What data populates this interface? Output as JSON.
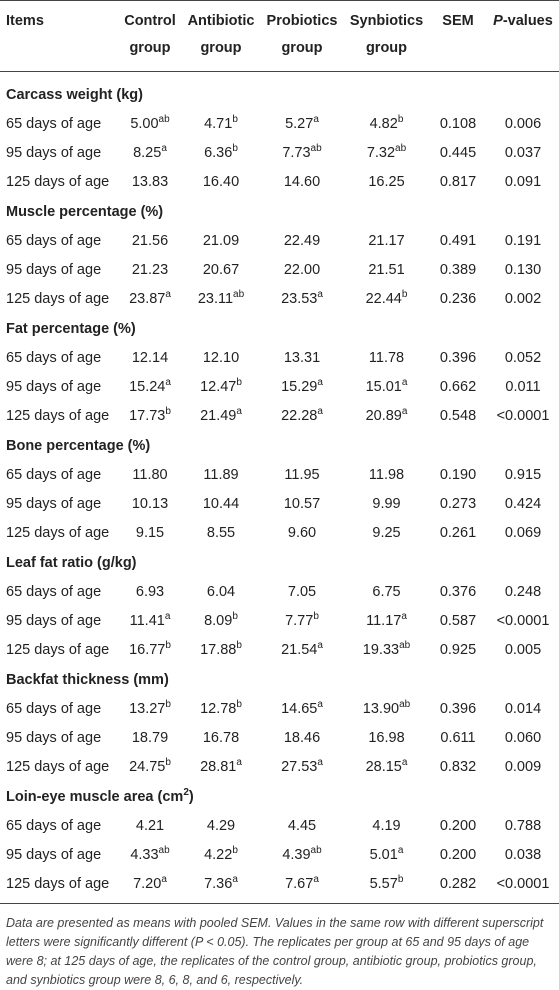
{
  "table": {
    "headers": [
      [
        "Items"
      ],
      [
        "Control",
        "group"
      ],
      [
        "Antibiotic",
        "group"
      ],
      [
        "Probiotics",
        "group"
      ],
      [
        "Synbiotics",
        "group"
      ],
      [
        "SEM"
      ],
      [
        "P-values"
      ]
    ],
    "sections": [
      {
        "title": "Carcass weight (kg)",
        "rows": [
          {
            "label": "65 days of age",
            "values": [
              [
                "5.00",
                "ab"
              ],
              [
                "4.71",
                "b"
              ],
              [
                "5.27",
                "a"
              ],
              [
                "4.82",
                "b"
              ],
              [
                "0.108",
                ""
              ],
              [
                "0.006",
                ""
              ]
            ]
          },
          {
            "label": "95 days of age",
            "values": [
              [
                "8.25",
                "a"
              ],
              [
                "6.36",
                "b"
              ],
              [
                "7.73",
                "ab"
              ],
              [
                "7.32",
                "ab"
              ],
              [
                "0.445",
                ""
              ],
              [
                "0.037",
                ""
              ]
            ]
          },
          {
            "label": "125 days of age",
            "values": [
              [
                "13.83",
                ""
              ],
              [
                "16.40",
                ""
              ],
              [
                "14.60",
                ""
              ],
              [
                "16.25",
                ""
              ],
              [
                "0.817",
                ""
              ],
              [
                "0.091",
                ""
              ]
            ]
          }
        ]
      },
      {
        "title": "Muscle percentage (%)",
        "rows": [
          {
            "label": "65 days of age",
            "values": [
              [
                "21.56",
                ""
              ],
              [
                "21.09",
                ""
              ],
              [
                "22.49",
                ""
              ],
              [
                "21.17",
                ""
              ],
              [
                "0.491",
                ""
              ],
              [
                "0.191",
                ""
              ]
            ]
          },
          {
            "label": "95 days of age",
            "values": [
              [
                "21.23",
                ""
              ],
              [
                "20.67",
                ""
              ],
              [
                "22.00",
                ""
              ],
              [
                "21.51",
                ""
              ],
              [
                "0.389",
                ""
              ],
              [
                "0.130",
                ""
              ]
            ]
          },
          {
            "label": "125 days of age",
            "values": [
              [
                "23.87",
                "a"
              ],
              [
                "23.11",
                "ab"
              ],
              [
                "23.53",
                "a"
              ],
              [
                "22.44",
                "b"
              ],
              [
                "0.236",
                ""
              ],
              [
                "0.002",
                ""
              ]
            ]
          }
        ]
      },
      {
        "title": "Fat percentage (%)",
        "rows": [
          {
            "label": "65 days of age",
            "values": [
              [
                "12.14",
                ""
              ],
              [
                "12.10",
                ""
              ],
              [
                "13.31",
                ""
              ],
              [
                "11.78",
                ""
              ],
              [
                "0.396",
                ""
              ],
              [
                "0.052",
                ""
              ]
            ]
          },
          {
            "label": "95 days of age",
            "values": [
              [
                "15.24",
                "a"
              ],
              [
                "12.47",
                "b"
              ],
              [
                "15.29",
                "a"
              ],
              [
                "15.01",
                "a"
              ],
              [
                "0.662",
                ""
              ],
              [
                "0.011",
                ""
              ]
            ]
          },
          {
            "label": "125 days of age",
            "values": [
              [
                "17.73",
                "b"
              ],
              [
                "21.49",
                "a"
              ],
              [
                "22.28",
                "a"
              ],
              [
                "20.89",
                "a"
              ],
              [
                "0.548",
                ""
              ],
              [
                "<0.0001",
                ""
              ]
            ]
          }
        ]
      },
      {
        "title": "Bone percentage (%)",
        "rows": [
          {
            "label": "65 days of age",
            "values": [
              [
                "11.80",
                ""
              ],
              [
                "11.89",
                ""
              ],
              [
                "11.95",
                ""
              ],
              [
                "11.98",
                ""
              ],
              [
                "0.190",
                ""
              ],
              [
                "0.915",
                ""
              ]
            ]
          },
          {
            "label": "95 days of age",
            "values": [
              [
                "10.13",
                ""
              ],
              [
                "10.44",
                ""
              ],
              [
                "10.57",
                ""
              ],
              [
                "9.99",
                ""
              ],
              [
                "0.273",
                ""
              ],
              [
                "0.424",
                ""
              ]
            ]
          },
          {
            "label": "125 days of age",
            "values": [
              [
                "9.15",
                ""
              ],
              [
                "8.55",
                ""
              ],
              [
                "9.60",
                ""
              ],
              [
                "9.25",
                ""
              ],
              [
                "0.261",
                ""
              ],
              [
                "0.069",
                ""
              ]
            ]
          }
        ]
      },
      {
        "title": "Leaf fat ratio (g/kg)",
        "rows": [
          {
            "label": "65 days of age",
            "values": [
              [
                "6.93",
                ""
              ],
              [
                "6.04",
                ""
              ],
              [
                "7.05",
                ""
              ],
              [
                "6.75",
                ""
              ],
              [
                "0.376",
                ""
              ],
              [
                "0.248",
                ""
              ]
            ]
          },
          {
            "label": "95 days of age",
            "values": [
              [
                "11.41",
                "a"
              ],
              [
                "8.09",
                "b"
              ],
              [
                "7.77",
                "b"
              ],
              [
                "11.17",
                "a"
              ],
              [
                "0.587",
                ""
              ],
              [
                "<0.0001",
                ""
              ]
            ]
          },
          {
            "label": "125 days of age",
            "values": [
              [
                "16.77",
                "b"
              ],
              [
                "17.88",
                "b"
              ],
              [
                "21.54",
                "a"
              ],
              [
                "19.33",
                "ab"
              ],
              [
                "0.925",
                ""
              ],
              [
                "0.005",
                ""
              ]
            ]
          }
        ]
      },
      {
        "title": "Backfat thickness (mm)",
        "rows": [
          {
            "label": "65 days of age",
            "values": [
              [
                "13.27",
                "b"
              ],
              [
                "12.78",
                "b"
              ],
              [
                "14.65",
                "a"
              ],
              [
                "13.90",
                "ab"
              ],
              [
                "0.396",
                ""
              ],
              [
                "0.014",
                ""
              ]
            ]
          },
          {
            "label": "95 days of age",
            "values": [
              [
                "18.79",
                ""
              ],
              [
                "16.78",
                ""
              ],
              [
                "18.46",
                ""
              ],
              [
                "16.98",
                ""
              ],
              [
                "0.611",
                ""
              ],
              [
                "0.060",
                ""
              ]
            ]
          },
          {
            "label": "125 days of age",
            "values": [
              [
                "24.75",
                "b"
              ],
              [
                "28.81",
                "a"
              ],
              [
                "27.53",
                "a"
              ],
              [
                "28.15",
                "a"
              ],
              [
                "0.832",
                ""
              ],
              [
                "0.009",
                ""
              ]
            ]
          }
        ]
      },
      {
        "title": "Loin-eye muscle area (cm",
        "title_sup": "2",
        "title_tail": ")",
        "rows": [
          {
            "label": "65 days of age",
            "values": [
              [
                "4.21",
                ""
              ],
              [
                "4.29",
                ""
              ],
              [
                "4.45",
                ""
              ],
              [
                "4.19",
                ""
              ],
              [
                "0.200",
                ""
              ],
              [
                "0.788",
                ""
              ]
            ]
          },
          {
            "label": "95 days of age",
            "values": [
              [
                "4.33",
                "ab"
              ],
              [
                "4.22",
                "b"
              ],
              [
                "4.39",
                "ab"
              ],
              [
                "5.01",
                "a"
              ],
              [
                "0.200",
                ""
              ],
              [
                "0.038",
                ""
              ]
            ]
          },
          {
            "label": "125 days of age",
            "values": [
              [
                "7.20",
                "a"
              ],
              [
                "7.36",
                "a"
              ],
              [
                "7.67",
                "a"
              ],
              [
                "5.57",
                "b"
              ],
              [
                "0.282",
                ""
              ],
              [
                "<0.0001",
                ""
              ]
            ]
          }
        ]
      }
    ],
    "footnote": "Data are presented as means with pooled SEM. Values in the same row with different superscript letters were significantly different (P < 0.05). The replicates per group at 65 and 95 days of age were 8; at 125 days of age, the replicates of the control group, antibiotic group, probiotics group, and synbiotics group were 8, 6, 8, and 6, respectively."
  }
}
